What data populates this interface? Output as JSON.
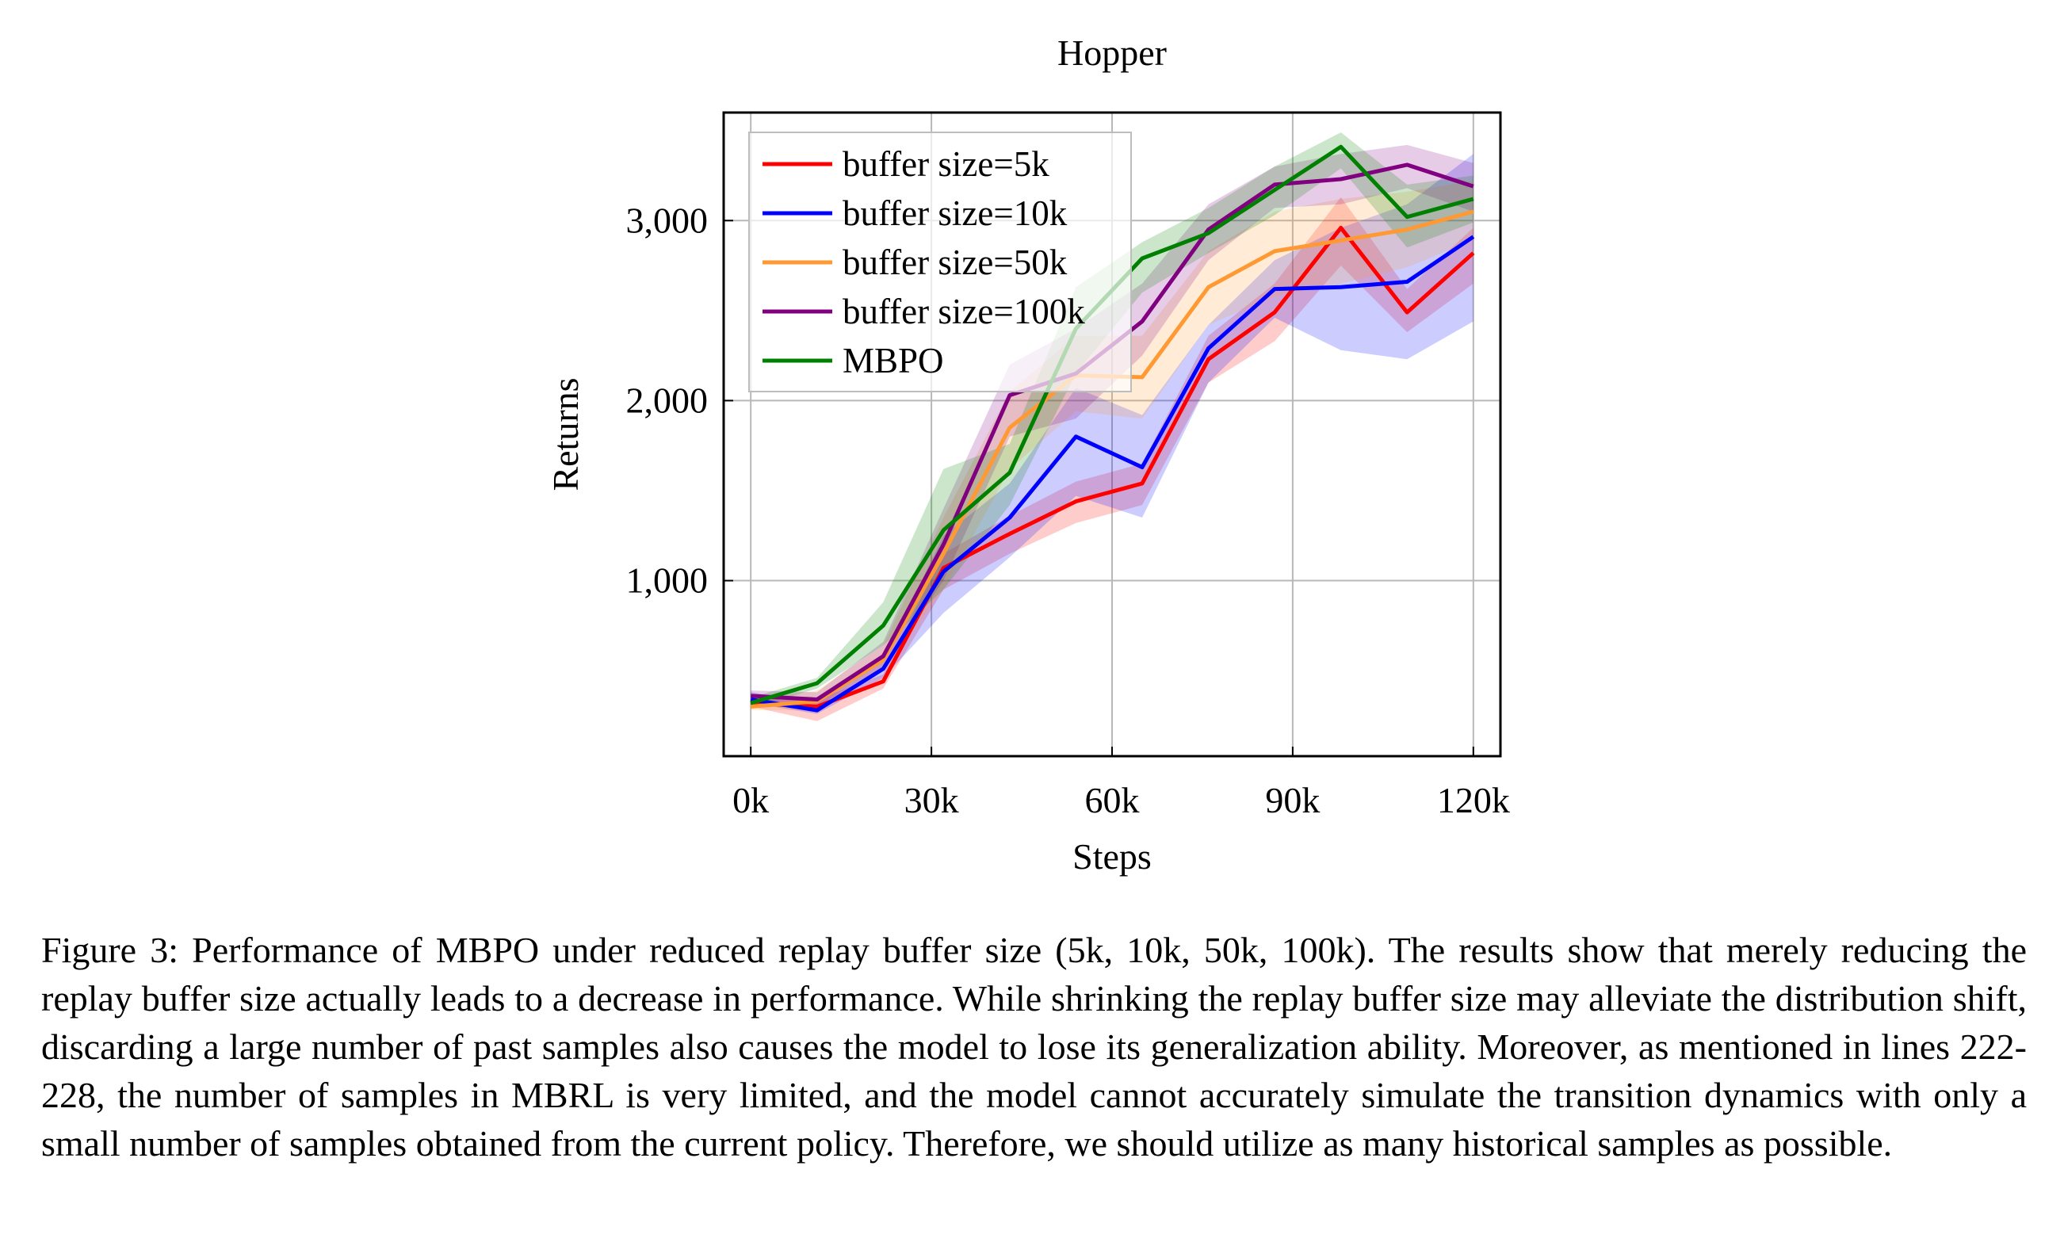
{
  "chart_data": {
    "type": "line",
    "title": "Hopper",
    "xlabel": "Steps",
    "ylabel": "Returns",
    "xlim": [
      -4500,
      124500
    ],
    "ylim": [
      25,
      3600
    ],
    "xticks": [
      0,
      30000,
      60000,
      90000,
      120000
    ],
    "xtick_labels": [
      "0k",
      "30k",
      "60k",
      "90k",
      "120k"
    ],
    "yticks": [
      1000,
      2000,
      3000
    ],
    "ytick_labels": [
      "1,000",
      "2,000",
      "3,000"
    ],
    "grid": true,
    "legend_position": "top-left",
    "x": [
      0,
      11000,
      22000,
      32000,
      43000,
      54000,
      65000,
      76000,
      87000,
      98000,
      109000,
      120000
    ],
    "series": [
      {
        "name": "buffer size=5k",
        "color": "#ff0000",
        "values": [
          320,
          300,
          440,
          1070,
          1260,
          1440,
          1540,
          2230,
          2490,
          2960,
          2490,
          2820
        ],
        "lower": [
          300,
          220,
          400,
          950,
          1150,
          1320,
          1420,
          2100,
          2330,
          2750,
          2380,
          2650
        ],
        "upper": [
          350,
          340,
          480,
          1150,
          1360,
          1550,
          1650,
          2360,
          2650,
          3130,
          2620,
          2960
        ]
      },
      {
        "name": "buffer size=10k",
        "color": "#0000ff",
        "values": [
          340,
          280,
          510,
          1050,
          1350,
          1800,
          1630,
          2290,
          2620,
          2630,
          2660,
          2910
        ],
        "lower": [
          320,
          260,
          460,
          820,
          1130,
          1470,
          1350,
          2100,
          2460,
          2280,
          2230,
          2440
        ],
        "upper": [
          380,
          320,
          560,
          1250,
          1540,
          2070,
          1920,
          2420,
          2780,
          2960,
          3090,
          3370
        ]
      },
      {
        "name": "buffer size=50k",
        "color": "#ff9933",
        "values": [
          300,
          330,
          560,
          1150,
          1850,
          2140,
          2130,
          2630,
          2830,
          2890,
          2950,
          3050
        ],
        "lower": [
          280,
          280,
          500,
          950,
          1620,
          1940,
          1900,
          2420,
          2580,
          2650,
          2740,
          2890
        ],
        "upper": [
          330,
          390,
          640,
          1350,
          2050,
          2360,
          2360,
          2830,
          3050,
          3120,
          3160,
          3220
        ]
      },
      {
        "name": "buffer size=100k",
        "color": "#800080",
        "values": [
          360,
          340,
          580,
          1200,
          2030,
          2150,
          2440,
          2950,
          3200,
          3230,
          3310,
          3190
        ],
        "lower": [
          330,
          300,
          520,
          1000,
          1800,
          1900,
          2250,
          2780,
          3070,
          3090,
          3180,
          3050
        ],
        "upper": [
          390,
          380,
          660,
          1400,
          2200,
          2400,
          2650,
          3090,
          3300,
          3370,
          3420,
          3320
        ]
      },
      {
        "name": "MBPO",
        "color": "#008000",
        "values": [
          320,
          430,
          750,
          1280,
          1600,
          2400,
          2790,
          2930,
          3170,
          3410,
          3020,
          3120
        ],
        "lower": [
          290,
          400,
          640,
          950,
          1420,
          2150,
          2600,
          2820,
          3030,
          3290,
          2850,
          2990
        ],
        "upper": [
          350,
          460,
          880,
          1620,
          1760,
          2630,
          2880,
          3070,
          3300,
          3490,
          3200,
          3250
        ]
      }
    ]
  },
  "caption": "Figure 3: Performance of MBPO under reduced replay buffer size (5k, 10k, 50k, 100k). The results show that merely reducing the replay buffer size actually leads to a decrease in performance. While shrinking the replay buffer size may alleviate the distribution shift, discarding a large number of past samples also causes the model to lose its generalization ability. Moreover, as mentioned in lines 222-228, the number of samples in MBRL is very limited, and the model cannot accurately simulate the transition dynamics with only a small number of samples obtained from the current policy. Therefore, we should utilize as many historical samples as possible."
}
